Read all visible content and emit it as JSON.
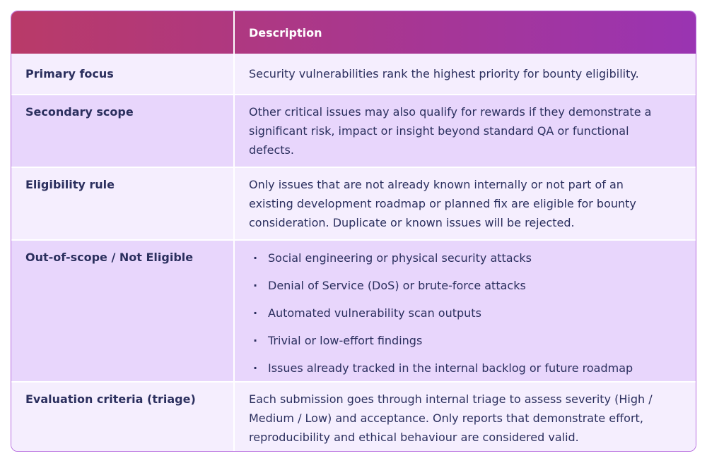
{
  "table": {
    "header": {
      "description": "Description"
    },
    "rows": [
      {
        "label": "Primary focus",
        "description": "Security vulnerabilities rank the highest priority for bounty eligibility."
      },
      {
        "label": "Secondary scope",
        "description": "Other critical issues may also qualify for rewards if they demonstrate a significant risk, impact or insight beyond standard QA or functional defects."
      },
      {
        "label": "Eligibility rule",
        "description": "Only issues that are not already known internally or not part of an existing development roadmap or planned fix are eligible for bounty consideration. Duplicate or known issues will be rejected."
      },
      {
        "label": "Out-of-scope / Not Eligible",
        "items": [
          "Social engineering or physical security attacks",
          "Denial of Service (DoS) or brute-force attacks",
          "Automated vulnerability scan outputs",
          "Trivial or low-effort findings",
          "Issues already tracked in the internal backlog or future roadmap"
        ]
      },
      {
        "label": "Evaluation criteria (triage)",
        "description": "Each submission goes through internal triage to assess severity (High / Medium / Low) and acceptance. Only reports that demonstrate effort, reproducibility and ethical behaviour are considered valid."
      }
    ]
  }
}
